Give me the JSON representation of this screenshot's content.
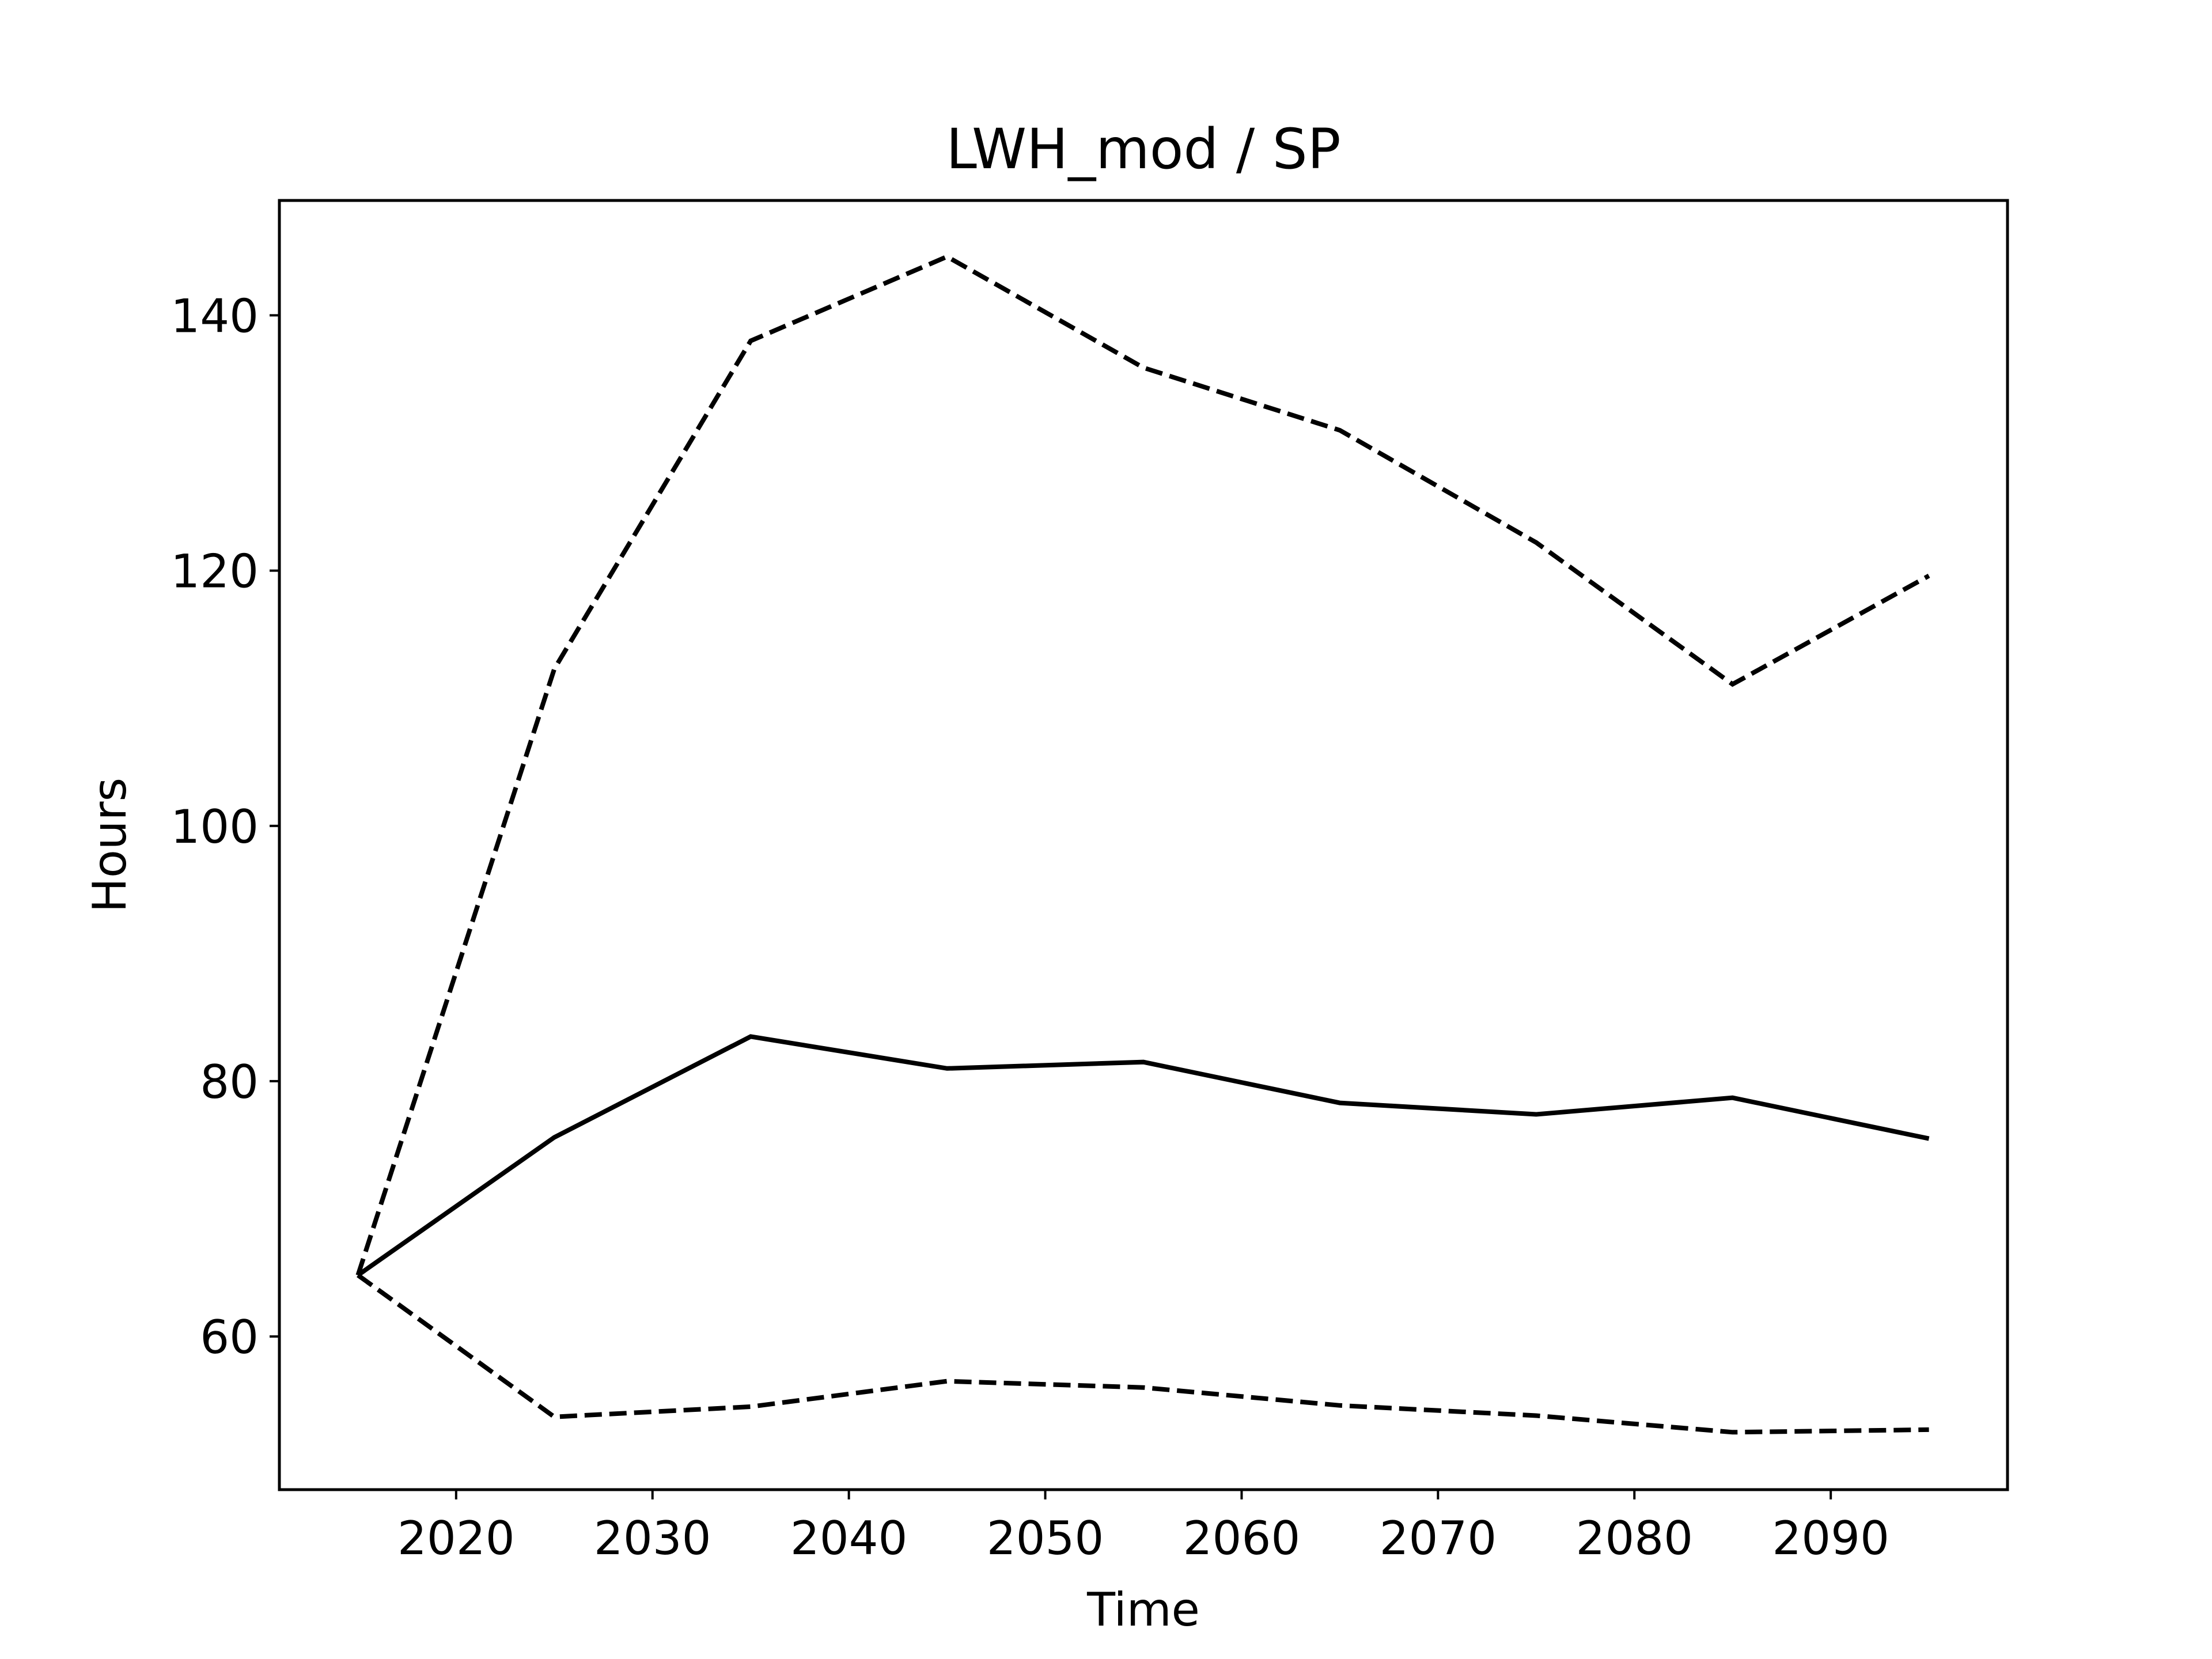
{
  "chart_data": {
    "type": "line",
    "title": "LWH_mod / SP",
    "xlabel": "Time",
    "ylabel": "Hours",
    "xlim": [
      2011,
      2099
    ],
    "ylim": [
      48,
      149
    ],
    "xticks": [
      2020,
      2030,
      2040,
      2050,
      2060,
      2070,
      2080,
      2090
    ],
    "yticks": [
      60,
      80,
      100,
      120,
      140
    ],
    "grid": false,
    "legend": false,
    "x": [
      2015,
      2025,
      2035,
      2045,
      2055,
      2065,
      2075,
      2085,
      2095
    ],
    "series": [
      {
        "style": "solid",
        "color": "#000000",
        "values": [
          64.8,
          75.6,
          83.5,
          81.0,
          81.5,
          78.3,
          77.4,
          78.7,
          75.5
        ]
      },
      {
        "style": "dashed",
        "color": "#000000",
        "values": [
          64.8,
          112.3,
          138.0,
          144.6,
          135.9,
          131.0,
          122.2,
          111.1,
          119.6
        ]
      },
      {
        "style": "dashed",
        "color": "#000000",
        "values": [
          64.8,
          53.7,
          54.5,
          56.5,
          56.0,
          54.6,
          53.8,
          52.5,
          52.7
        ]
      }
    ]
  }
}
